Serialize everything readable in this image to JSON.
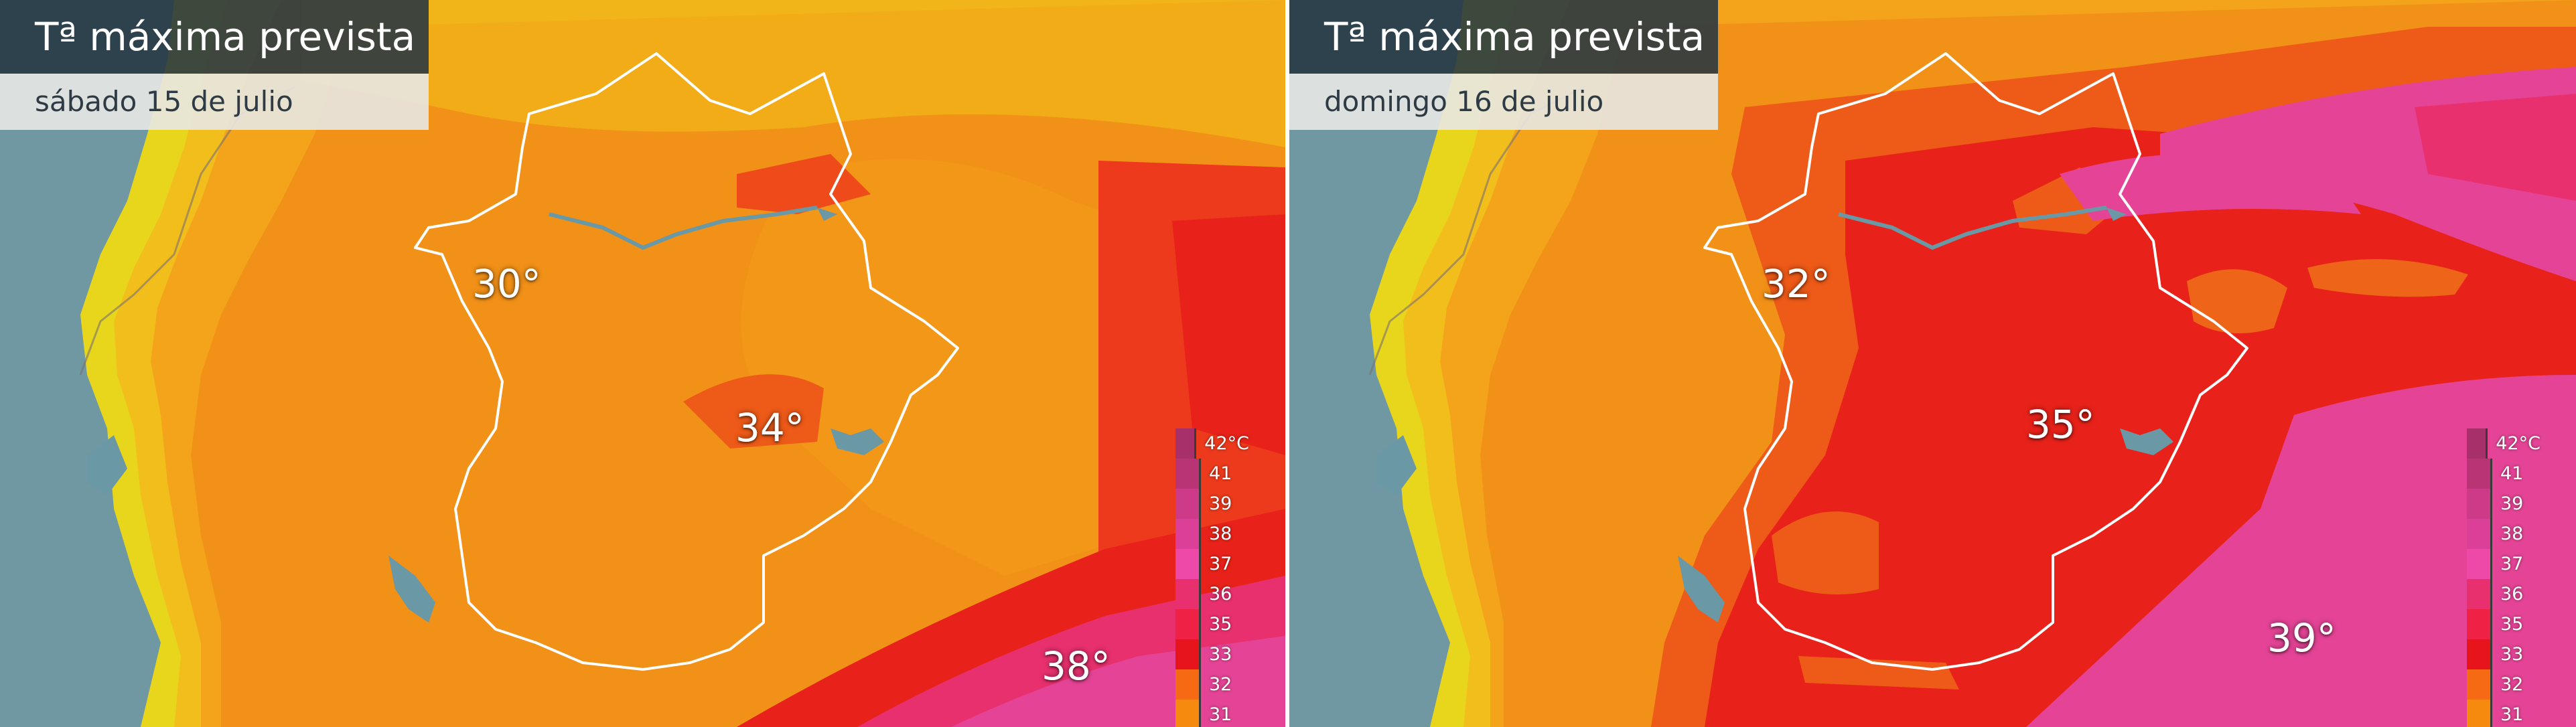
{
  "panels": [
    {
      "title": "Tª máxima prevista",
      "date": "sábado 15 de julio",
      "labels": {
        "l1": "30°",
        "l2": "34°",
        "l3": "38°"
      }
    },
    {
      "title": "Tª máxima prevista",
      "date": "domingo 16  de julio",
      "labels": {
        "l1": "32°",
        "l2": "35°",
        "l3": "39°"
      }
    }
  ],
  "legend": [
    {
      "label": "42°C",
      "color": "#a8306a"
    },
    {
      "label": "41",
      "color": "#b83474"
    },
    {
      "label": "39",
      "color": "#cc3a88"
    },
    {
      "label": "38",
      "color": "#dc3f98"
    },
    {
      "label": "37",
      "color": "#ee49a8"
    },
    {
      "label": "36",
      "color": "#e8306e"
    },
    {
      "label": "35",
      "color": "#ef2245"
    },
    {
      "label": "33",
      "color": "#e8141c"
    },
    {
      "label": "32",
      "color": "#f56a13"
    },
    {
      "label": "31",
      "color": "#f68a0f"
    }
  ],
  "colors": {
    "sea": "#6f98a3",
    "yellow": "#e6dc1c",
    "orange_light": "#f4b21a",
    "orange": "#f29118",
    "orange_deep": "#ee7a18",
    "red": "#e82a1f",
    "magenta": "#e54496",
    "region_border": "#ffffff"
  }
}
